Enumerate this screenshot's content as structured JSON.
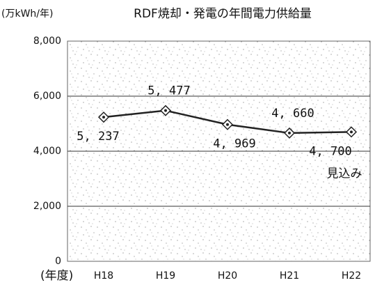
{
  "chart_data": {
    "type": "line",
    "title": "RDF焼却・発電の年間電力供給量",
    "y_label": "(万kWh/年)",
    "x_label": "(年度)",
    "categories": [
      "H18",
      "H19",
      "H20",
      "H21",
      "H22"
    ],
    "series": [
      {
        "name": "年間電力供給量",
        "color": "#222222",
        "values": [
          5237,
          5477,
          4969,
          4660,
          4700
        ],
        "value_labels": [
          "5, 237",
          "5, 477",
          "4, 969",
          "4, 660",
          "4, 700"
        ]
      }
    ],
    "annotation": "見込み",
    "ylim": [
      0,
      8000
    ],
    "yticks": [
      0,
      {
        "value": 2000,
        "label": "2,000"
      },
      {
        "value": 4000,
        "label": "4,000"
      },
      {
        "value": 6000,
        "label": "6,000"
      },
      {
        "value": 8000,
        "label": "8,000"
      }
    ],
    "grid": true
  }
}
